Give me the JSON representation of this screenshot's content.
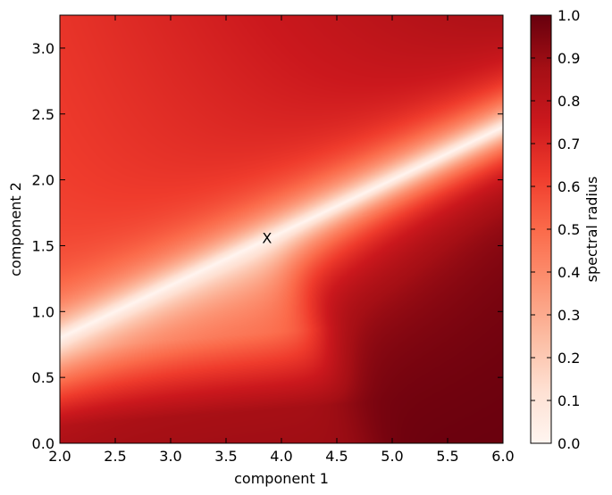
{
  "chart_data": {
    "type": "heatmap",
    "title": "",
    "xlabel": "component 1",
    "ylabel": "component 2",
    "xlim": [
      2.0,
      6.0
    ],
    "ylim": [
      0.0,
      3.25
    ],
    "xticks": [
      "2.0",
      "2.5",
      "3.0",
      "3.5",
      "4.0",
      "4.5",
      "5.0",
      "5.5",
      "6.0"
    ],
    "yticks": [
      "0.0",
      "0.5",
      "1.0",
      "1.5",
      "2.0",
      "2.5",
      "3.0"
    ],
    "colorbar": {
      "label": "spectral radius",
      "range": [
        0.0,
        1.0
      ],
      "ticks": [
        "0.0",
        "0.1",
        "0.2",
        "0.3",
        "0.4",
        "0.5",
        "0.6",
        "0.7",
        "0.8",
        "0.9",
        "1.0"
      ],
      "colormap": "Reds"
    },
    "marker": {
      "label": "X",
      "x": 3.87,
      "y": 1.55
    },
    "field_description": {
      "diagonal_line": {
        "from": [
          2.0,
          0.8
        ],
        "to": [
          6.0,
          2.4
        ]
      },
      "region_values": {
        "top_left": 0.6,
        "top_right": 0.8,
        "bottom_left": 0.9,
        "bottom_right": 1.0,
        "near_marker": 0.0
      }
    }
  }
}
